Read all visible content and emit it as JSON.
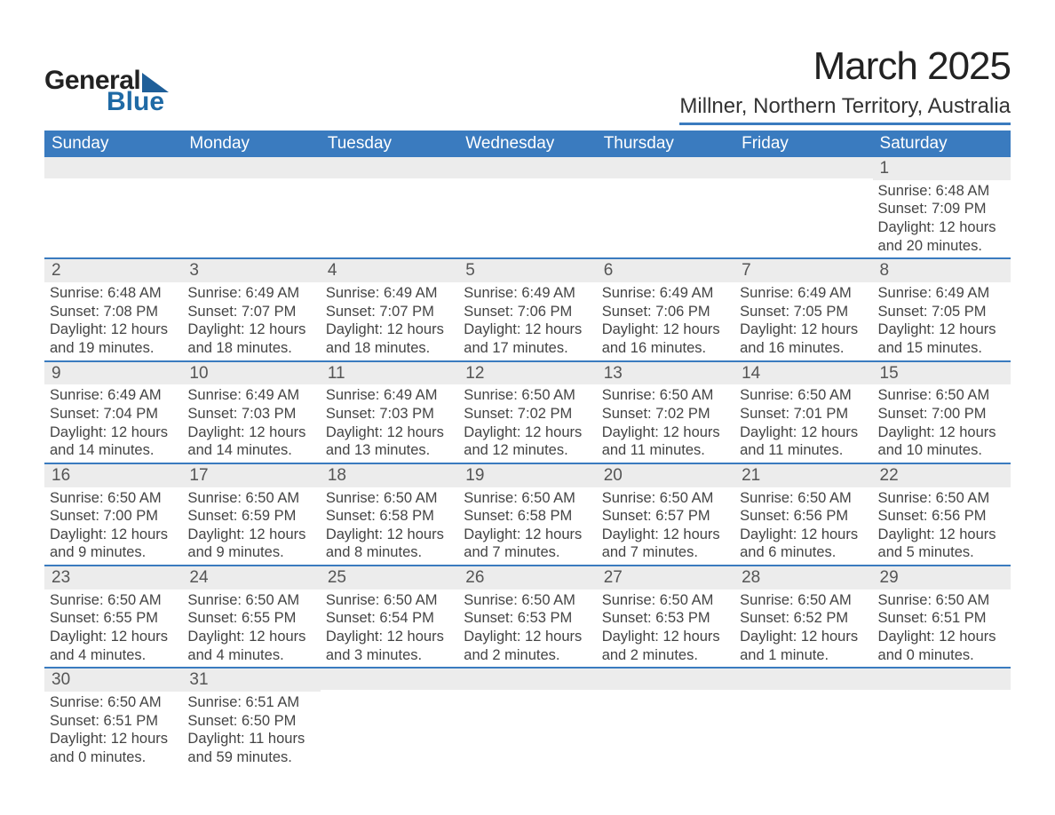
{
  "logo": {
    "text_general": "General",
    "text_blue": "Blue"
  },
  "title": "March 2025",
  "location": "Millner, Northern Territory, Australia",
  "colors": {
    "header_bg": "#3a7bbf",
    "header_text": "#ffffff",
    "daynum_bg": "#ececec",
    "text": "#444444",
    "rule": "#3a7bbf"
  },
  "day_headers": [
    "Sunday",
    "Monday",
    "Tuesday",
    "Wednesday",
    "Thursday",
    "Friday",
    "Saturday"
  ],
  "weeks": [
    [
      {
        "n": "",
        "sr": "",
        "ss": "",
        "dl": ""
      },
      {
        "n": "",
        "sr": "",
        "ss": "",
        "dl": ""
      },
      {
        "n": "",
        "sr": "",
        "ss": "",
        "dl": ""
      },
      {
        "n": "",
        "sr": "",
        "ss": "",
        "dl": ""
      },
      {
        "n": "",
        "sr": "",
        "ss": "",
        "dl": ""
      },
      {
        "n": "",
        "sr": "",
        "ss": "",
        "dl": ""
      },
      {
        "n": "1",
        "sr": "Sunrise: 6:48 AM",
        "ss": "Sunset: 7:09 PM",
        "dl": "Daylight: 12 hours and 20 minutes."
      }
    ],
    [
      {
        "n": "2",
        "sr": "Sunrise: 6:48 AM",
        "ss": "Sunset: 7:08 PM",
        "dl": "Daylight: 12 hours and 19 minutes."
      },
      {
        "n": "3",
        "sr": "Sunrise: 6:49 AM",
        "ss": "Sunset: 7:07 PM",
        "dl": "Daylight: 12 hours and 18 minutes."
      },
      {
        "n": "4",
        "sr": "Sunrise: 6:49 AM",
        "ss": "Sunset: 7:07 PM",
        "dl": "Daylight: 12 hours and 18 minutes."
      },
      {
        "n": "5",
        "sr": "Sunrise: 6:49 AM",
        "ss": "Sunset: 7:06 PM",
        "dl": "Daylight: 12 hours and 17 minutes."
      },
      {
        "n": "6",
        "sr": "Sunrise: 6:49 AM",
        "ss": "Sunset: 7:06 PM",
        "dl": "Daylight: 12 hours and 16 minutes."
      },
      {
        "n": "7",
        "sr": "Sunrise: 6:49 AM",
        "ss": "Sunset: 7:05 PM",
        "dl": "Daylight: 12 hours and 16 minutes."
      },
      {
        "n": "8",
        "sr": "Sunrise: 6:49 AM",
        "ss": "Sunset: 7:05 PM",
        "dl": "Daylight: 12 hours and 15 minutes."
      }
    ],
    [
      {
        "n": "9",
        "sr": "Sunrise: 6:49 AM",
        "ss": "Sunset: 7:04 PM",
        "dl": "Daylight: 12 hours and 14 minutes."
      },
      {
        "n": "10",
        "sr": "Sunrise: 6:49 AM",
        "ss": "Sunset: 7:03 PM",
        "dl": "Daylight: 12 hours and 14 minutes."
      },
      {
        "n": "11",
        "sr": "Sunrise: 6:49 AM",
        "ss": "Sunset: 7:03 PM",
        "dl": "Daylight: 12 hours and 13 minutes."
      },
      {
        "n": "12",
        "sr": "Sunrise: 6:50 AM",
        "ss": "Sunset: 7:02 PM",
        "dl": "Daylight: 12 hours and 12 minutes."
      },
      {
        "n": "13",
        "sr": "Sunrise: 6:50 AM",
        "ss": "Sunset: 7:02 PM",
        "dl": "Daylight: 12 hours and 11 minutes."
      },
      {
        "n": "14",
        "sr": "Sunrise: 6:50 AM",
        "ss": "Sunset: 7:01 PM",
        "dl": "Daylight: 12 hours and 11 minutes."
      },
      {
        "n": "15",
        "sr": "Sunrise: 6:50 AM",
        "ss": "Sunset: 7:00 PM",
        "dl": "Daylight: 12 hours and 10 minutes."
      }
    ],
    [
      {
        "n": "16",
        "sr": "Sunrise: 6:50 AM",
        "ss": "Sunset: 7:00 PM",
        "dl": "Daylight: 12 hours and 9 minutes."
      },
      {
        "n": "17",
        "sr": "Sunrise: 6:50 AM",
        "ss": "Sunset: 6:59 PM",
        "dl": "Daylight: 12 hours and 9 minutes."
      },
      {
        "n": "18",
        "sr": "Sunrise: 6:50 AM",
        "ss": "Sunset: 6:58 PM",
        "dl": "Daylight: 12 hours and 8 minutes."
      },
      {
        "n": "19",
        "sr": "Sunrise: 6:50 AM",
        "ss": "Sunset: 6:58 PM",
        "dl": "Daylight: 12 hours and 7 minutes."
      },
      {
        "n": "20",
        "sr": "Sunrise: 6:50 AM",
        "ss": "Sunset: 6:57 PM",
        "dl": "Daylight: 12 hours and 7 minutes."
      },
      {
        "n": "21",
        "sr": "Sunrise: 6:50 AM",
        "ss": "Sunset: 6:56 PM",
        "dl": "Daylight: 12 hours and 6 minutes."
      },
      {
        "n": "22",
        "sr": "Sunrise: 6:50 AM",
        "ss": "Sunset: 6:56 PM",
        "dl": "Daylight: 12 hours and 5 minutes."
      }
    ],
    [
      {
        "n": "23",
        "sr": "Sunrise: 6:50 AM",
        "ss": "Sunset: 6:55 PM",
        "dl": "Daylight: 12 hours and 4 minutes."
      },
      {
        "n": "24",
        "sr": "Sunrise: 6:50 AM",
        "ss": "Sunset: 6:55 PM",
        "dl": "Daylight: 12 hours and 4 minutes."
      },
      {
        "n": "25",
        "sr": "Sunrise: 6:50 AM",
        "ss": "Sunset: 6:54 PM",
        "dl": "Daylight: 12 hours and 3 minutes."
      },
      {
        "n": "26",
        "sr": "Sunrise: 6:50 AM",
        "ss": "Sunset: 6:53 PM",
        "dl": "Daylight: 12 hours and 2 minutes."
      },
      {
        "n": "27",
        "sr": "Sunrise: 6:50 AM",
        "ss": "Sunset: 6:53 PM",
        "dl": "Daylight: 12 hours and 2 minutes."
      },
      {
        "n": "28",
        "sr": "Sunrise: 6:50 AM",
        "ss": "Sunset: 6:52 PM",
        "dl": "Daylight: 12 hours and 1 minute."
      },
      {
        "n": "29",
        "sr": "Sunrise: 6:50 AM",
        "ss": "Sunset: 6:51 PM",
        "dl": "Daylight: 12 hours and 0 minutes."
      }
    ],
    [
      {
        "n": "30",
        "sr": "Sunrise: 6:50 AM",
        "ss": "Sunset: 6:51 PM",
        "dl": "Daylight: 12 hours and 0 minutes."
      },
      {
        "n": "31",
        "sr": "Sunrise: 6:51 AM",
        "ss": "Sunset: 6:50 PM",
        "dl": "Daylight: 11 hours and 59 minutes."
      },
      {
        "n": "",
        "sr": "",
        "ss": "",
        "dl": ""
      },
      {
        "n": "",
        "sr": "",
        "ss": "",
        "dl": ""
      },
      {
        "n": "",
        "sr": "",
        "ss": "",
        "dl": ""
      },
      {
        "n": "",
        "sr": "",
        "ss": "",
        "dl": ""
      },
      {
        "n": "",
        "sr": "",
        "ss": "",
        "dl": ""
      }
    ]
  ]
}
